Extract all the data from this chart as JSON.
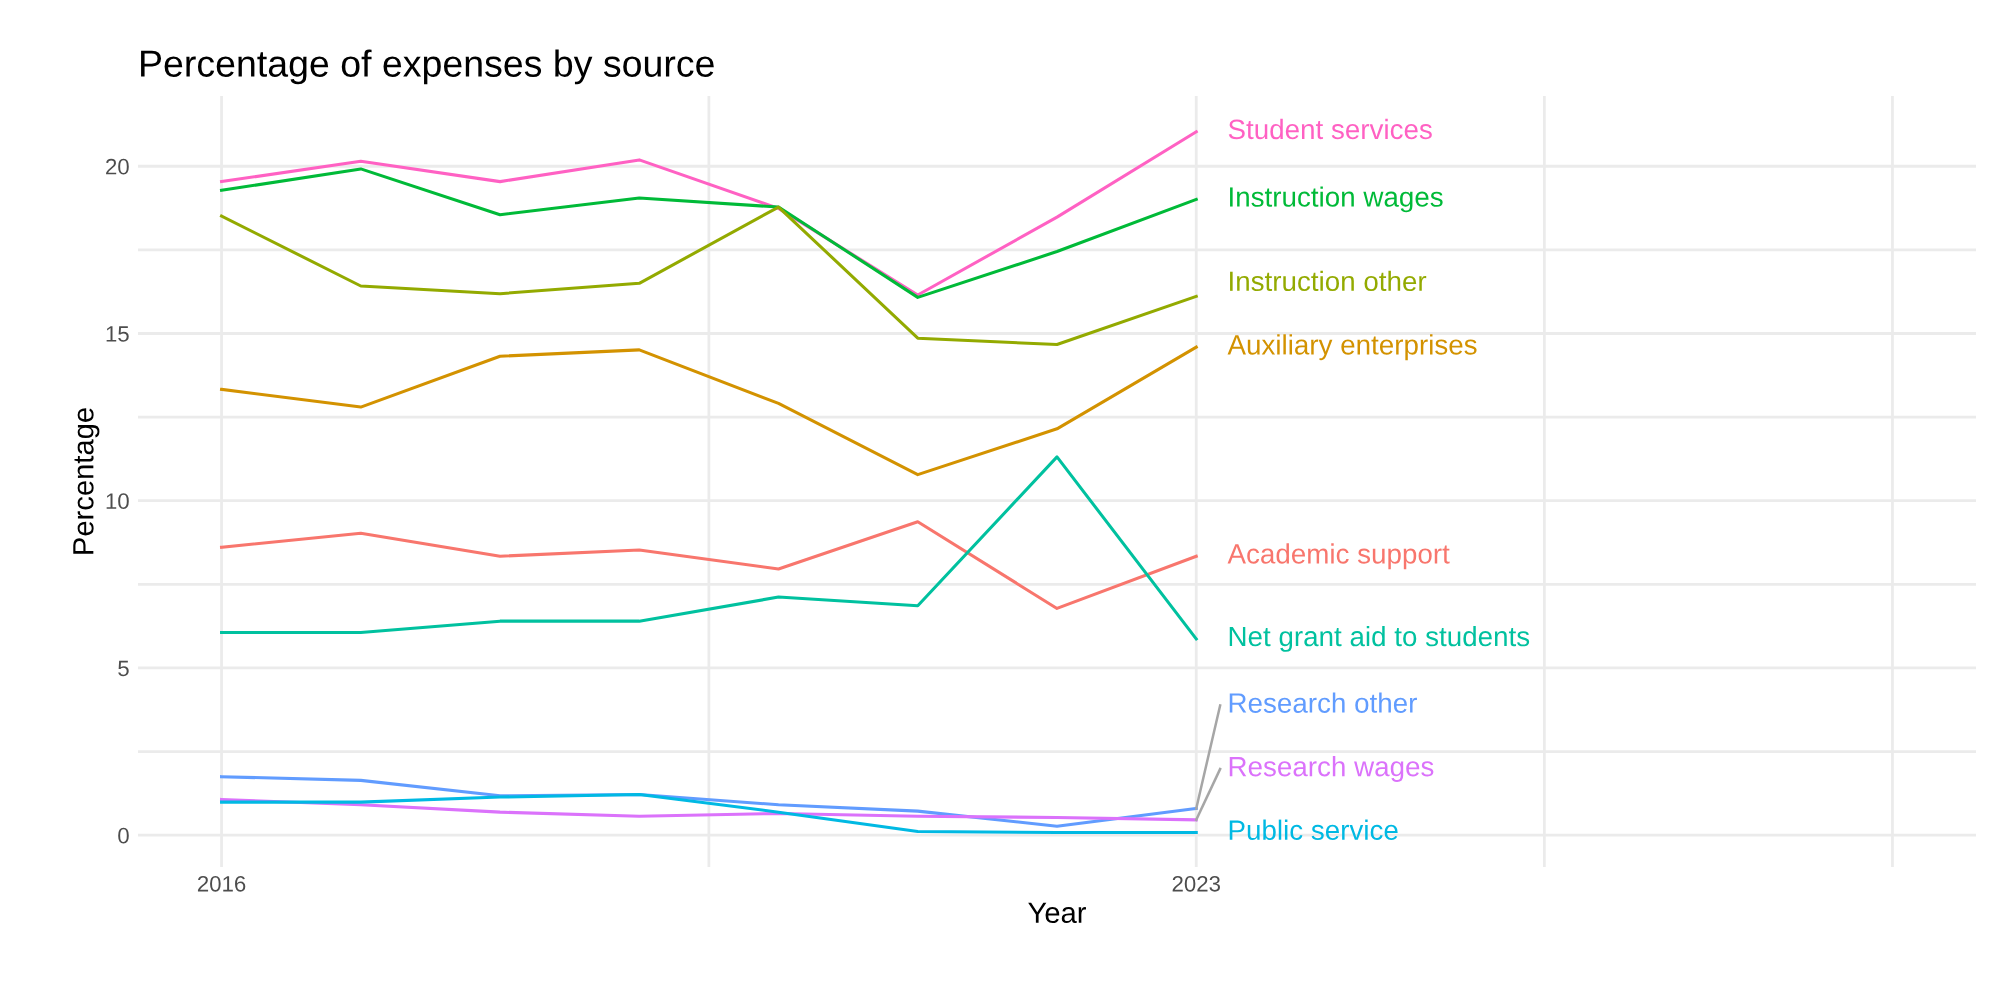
{
  "chart_data": {
    "type": "line",
    "title": "Percentage of expenses by source",
    "xlabel": "Year",
    "ylabel": "Percentage",
    "x": [
      2016,
      2017,
      2018,
      2019,
      2020,
      2021,
      2022,
      2023
    ],
    "series": [
      {
        "name": "Student services",
        "color": "#ff61c3",
        "values": [
          19.54,
          20.15,
          19.54,
          20.19,
          18.74,
          16.15,
          18.48,
          21.03
        ]
      },
      {
        "name": "Instruction wages",
        "color": "#00ba38",
        "values": [
          19.28,
          19.92,
          18.55,
          19.05,
          18.78,
          16.08,
          17.45,
          19.01
        ]
      },
      {
        "name": "Instruction other",
        "color": "#93aa00",
        "values": [
          18.51,
          16.42,
          16.19,
          16.5,
          18.78,
          14.86,
          14.67,
          16.11
        ]
      },
      {
        "name": "Auxiliary enterprises",
        "color": "#d39200",
        "values": [
          13.33,
          12.8,
          14.32,
          14.51,
          12.91,
          10.78,
          12.15,
          14.59
        ]
      },
      {
        "name": "Academic support",
        "color": "#f8766d",
        "values": [
          8.61,
          9.03,
          8.34,
          8.53,
          7.96,
          9.37,
          6.78,
          8.34
        ]
      },
      {
        "name": "Net grant aid to students",
        "color": "#00c19f",
        "values": [
          6.06,
          6.06,
          6.4,
          6.4,
          7.12,
          6.86,
          11.31,
          5.87
        ]
      },
      {
        "name": "Research other",
        "color": "#619cff",
        "values": [
          1.75,
          1.64,
          1.18,
          1.22,
          0.91,
          0.72,
          0.27,
          0.8
        ]
      },
      {
        "name": "Research wages",
        "color": "#db72fb",
        "values": [
          1.07,
          0.91,
          0.69,
          0.57,
          0.65,
          0.57,
          0.53,
          0.46
        ]
      },
      {
        "name": "Public service",
        "color": "#00b9e3",
        "values": [
          0.99,
          0.99,
          1.14,
          1.22,
          0.69,
          0.11,
          0.08,
          0.08
        ]
      }
    ],
    "xlim": [
      2015.4,
      2028.6
    ],
    "xticks": [
      2016,
      {
        "value": 2019.5,
        "label": null
      },
      2023,
      {
        "value": 2025.5,
        "label": null
      },
      {
        "value": 2028,
        "label": null
      }
    ],
    "ylim": [
      -0.95,
      22.1
    ],
    "yticks": [
      0,
      {
        "value": 2.5,
        "label": null
      },
      5,
      {
        "value": 7.5,
        "label": null
      },
      10,
      {
        "value": 12.5,
        "label": null
      },
      15,
      {
        "value": 17.5,
        "label": null
      },
      20
    ],
    "grid": true,
    "legend": false,
    "line_style": "solid",
    "marker": "none"
  }
}
